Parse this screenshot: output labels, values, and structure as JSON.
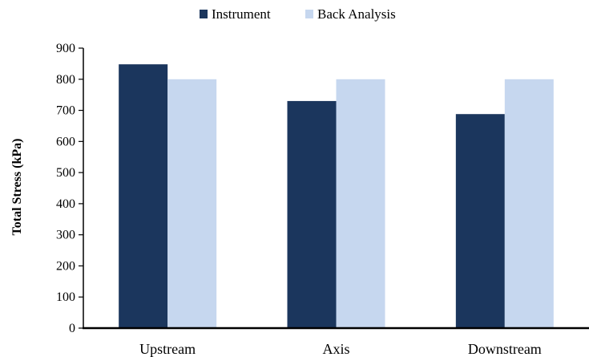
{
  "chart_data": {
    "type": "bar",
    "title": "",
    "xlabel": "",
    "ylabel": "Total Stress (kPa)",
    "ylim": [
      0,
      900
    ],
    "yticks": [
      0,
      100,
      200,
      300,
      400,
      500,
      600,
      700,
      800,
      900
    ],
    "categories": [
      "Upstream",
      "Axis",
      "Downstream"
    ],
    "series": [
      {
        "name": "Instrument",
        "color": "#1b365d",
        "values": [
          848,
          730,
          688
        ]
      },
      {
        "name": "Back Analysis",
        "color": "#c6d7ef",
        "values": [
          800,
          800,
          800
        ]
      }
    ],
    "grid": false,
    "legend_position": "top"
  }
}
